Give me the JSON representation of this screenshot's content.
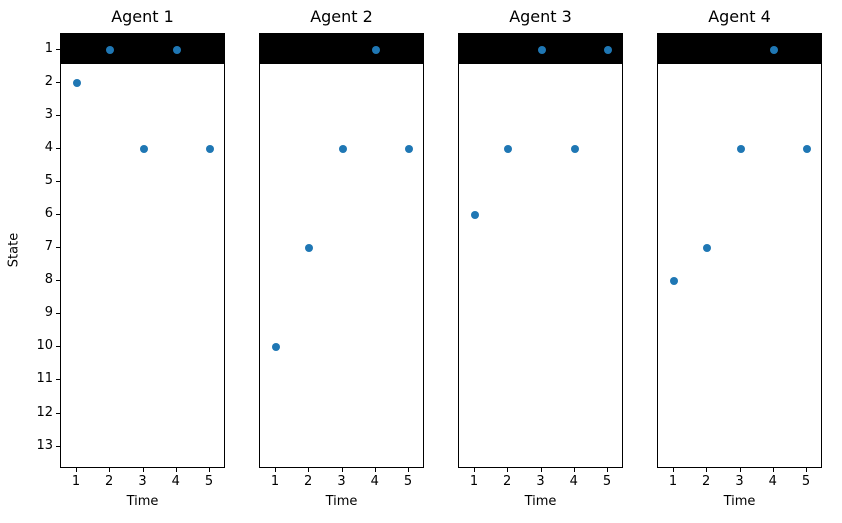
{
  "figure": {
    "ylabel": "State",
    "point_color": "#1f77b4",
    "band_color": "#000000",
    "background": "#ffffff"
  },
  "chart_data": [
    {
      "type": "scatter",
      "title": "Agent 1",
      "xlabel": "Time",
      "x": [
        1,
        2,
        3,
        4,
        5
      ],
      "y": [
        2,
        1,
        4,
        1,
        4
      ],
      "xticks": [
        1,
        2,
        3,
        4,
        5
      ],
      "yticks": [
        1,
        2,
        3,
        4,
        5,
        6,
        7,
        8,
        9,
        10,
        11,
        12,
        13
      ],
      "xlim": [
        0.55,
        5.45
      ],
      "ylim": [
        0.55,
        13.65
      ],
      "y_axis_inverted": true,
      "grid": false,
      "legend": false,
      "band": {
        "y_from": 0.55,
        "y_to": 1.45,
        "color": "#000000"
      }
    },
    {
      "type": "scatter",
      "title": "Agent 2",
      "xlabel": "Time",
      "x": [
        1,
        2,
        3,
        4,
        5
      ],
      "y": [
        10,
        7,
        4,
        1,
        4
      ],
      "xticks": [
        1,
        2,
        3,
        4,
        5
      ],
      "yticks": [
        1,
        2,
        3,
        4,
        5,
        6,
        7,
        8,
        9,
        10,
        11,
        12,
        13
      ],
      "xlim": [
        0.55,
        5.45
      ],
      "ylim": [
        0.55,
        13.65
      ],
      "y_axis_inverted": true,
      "grid": false,
      "legend": false,
      "band": {
        "y_from": 0.55,
        "y_to": 1.45,
        "color": "#000000"
      }
    },
    {
      "type": "scatter",
      "title": "Agent 3",
      "xlabel": "Time",
      "x": [
        1,
        2,
        3,
        4,
        5
      ],
      "y": [
        6,
        4,
        1,
        4,
        1
      ],
      "xticks": [
        1,
        2,
        3,
        4,
        5
      ],
      "yticks": [
        1,
        2,
        3,
        4,
        5,
        6,
        7,
        8,
        9,
        10,
        11,
        12,
        13
      ],
      "xlim": [
        0.55,
        5.45
      ],
      "ylim": [
        0.55,
        13.65
      ],
      "y_axis_inverted": true,
      "grid": false,
      "legend": false,
      "band": {
        "y_from": 0.55,
        "y_to": 1.45,
        "color": "#000000"
      }
    },
    {
      "type": "scatter",
      "title": "Agent 4",
      "xlabel": "Time",
      "x": [
        1,
        2,
        3,
        4,
        5
      ],
      "y": [
        8,
        7,
        4,
        1,
        4
      ],
      "xticks": [
        1,
        2,
        3,
        4,
        5
      ],
      "yticks": [
        1,
        2,
        3,
        4,
        5,
        6,
        7,
        8,
        9,
        10,
        11,
        12,
        13
      ],
      "xlim": [
        0.55,
        5.45
      ],
      "ylim": [
        0.55,
        13.65
      ],
      "y_axis_inverted": true,
      "grid": false,
      "legend": false,
      "band": {
        "y_from": 0.55,
        "y_to": 1.45,
        "color": "#000000"
      }
    }
  ]
}
